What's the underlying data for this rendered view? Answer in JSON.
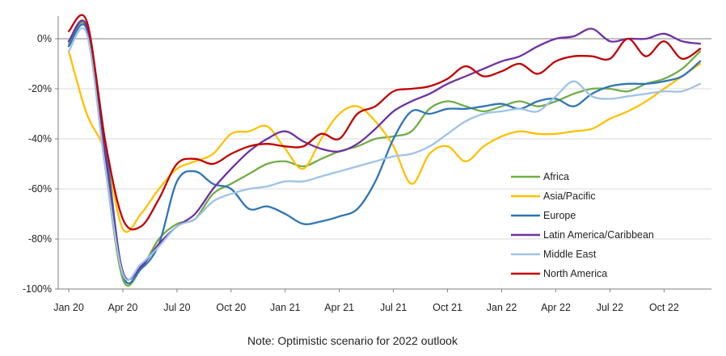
{
  "chart_data": {
    "type": "line",
    "title": "",
    "xlabel": "",
    "ylabel": "",
    "ylim": [
      -100,
      8
    ],
    "y_ticks": [
      0,
      -20,
      -40,
      -60,
      -80,
      -100
    ],
    "y_tick_labels": [
      "0%",
      "-20%",
      "-40%",
      "-60%",
      "-80%",
      "-100%"
    ],
    "x_tick_labels": [
      "Jan 20",
      "Apr 20",
      "Jul 20",
      "Oct 20",
      "Jan 21",
      "Apr 21",
      "Jul 21",
      "Oct 21",
      "Jan 22",
      "Apr 22",
      "Jul 22",
      "Oct 22"
    ],
    "x": [
      "Jan 20",
      "Feb 20",
      "Mar 20",
      "Apr 20",
      "May 20",
      "Jun 20",
      "Jul 20",
      "Aug 20",
      "Sep 20",
      "Oct 20",
      "Nov 20",
      "Dec 20",
      "Jan 21",
      "Feb 21",
      "Mar 21",
      "Apr 21",
      "May 21",
      "Jun 21",
      "Jul 21",
      "Aug 21",
      "Sep 21",
      "Oct 21",
      "Nov 21",
      "Dec 21",
      "Jan 22",
      "Feb 22",
      "Mar 22",
      "Apr 22",
      "May 22",
      "Jun 22",
      "Jul 22",
      "Aug 22",
      "Sep 22",
      "Oct 22",
      "Nov 22",
      "Dec 22"
    ],
    "grid": "horizontal",
    "legend_position": "right-center",
    "note": "Note:  Optimistic scenario for 2022 outlook",
    "series": [
      {
        "name": "Africa",
        "color": "#70ad47",
        "values": [
          -2,
          4,
          -50,
          -96,
          -92,
          -80,
          -74,
          -72,
          -62,
          -58,
          -54,
          -50,
          -49,
          -51,
          -48,
          -45,
          -43,
          -40,
          -39,
          -37,
          -28,
          -25,
          -27,
          -29,
          -27,
          -25,
          -27,
          -25,
          -22,
          -20,
          -20,
          -21,
          -18,
          -16,
          -12,
          -5
        ]
      },
      {
        "name": "Asia/Pacific",
        "color": "#ffc000",
        "values": [
          -5,
          -30,
          -45,
          -76,
          -70,
          -60,
          -52,
          -49,
          -46,
          -38,
          -37,
          -35,
          -44,
          -52,
          -40,
          -30,
          -27,
          -33,
          -43,
          -58,
          -46,
          -43,
          -49,
          -43,
          -39,
          -37,
          -38,
          -38,
          -37,
          -36,
          -32,
          -29,
          -25,
          -20,
          -15,
          -10
        ]
      },
      {
        "name": "Europe",
        "color": "#2e75b6",
        "values": [
          -3,
          4,
          -40,
          -94,
          -92,
          -82,
          -57,
          -53,
          -58,
          -60,
          -68,
          -67,
          -70,
          -74,
          -73,
          -71,
          -68,
          -57,
          -40,
          -29,
          -30,
          -28,
          -28,
          -27,
          -26,
          -28,
          -25,
          -24,
          -27,
          -22,
          -19,
          -18,
          -18,
          -17,
          -15,
          -9
        ]
      },
      {
        "name": "Latin America/Caribbean",
        "color": "#7030a0",
        "values": [
          -1,
          5,
          -45,
          -93,
          -91,
          -82,
          -75,
          -70,
          -60,
          -52,
          -45,
          -40,
          -37,
          -41,
          -44,
          -45,
          -42,
          -36,
          -29,
          -25,
          -22,
          -18,
          -15,
          -12,
          -9,
          -7,
          -3,
          0,
          1,
          4,
          -1,
          0,
          0,
          2,
          -1,
          -2
        ]
      },
      {
        "name": "Middle East",
        "color": "#9dc3e6",
        "values": [
          -5,
          2,
          -50,
          -94,
          -90,
          -83,
          -75,
          -72,
          -65,
          -62,
          -60,
          -59,
          -57,
          -57,
          -55,
          -53,
          -51,
          -49,
          -47,
          -46,
          -43,
          -38,
          -33,
          -30,
          -29,
          -28,
          -29,
          -23,
          -17,
          -23,
          -24,
          -23,
          -22,
          -21,
          -21,
          -18
        ]
      },
      {
        "name": "North America",
        "color": "#c00000",
        "values": [
          3,
          7,
          -40,
          -72,
          -75,
          -64,
          -50,
          -48,
          -50,
          -46,
          -43,
          -42,
          -43,
          -43,
          -38,
          -40,
          -30,
          -27,
          -21,
          -20,
          -19,
          -16,
          -11,
          -15,
          -13,
          -10,
          -14,
          -9,
          -7,
          -7,
          -8,
          0,
          -7,
          -1,
          -8,
          -4
        ]
      }
    ]
  }
}
